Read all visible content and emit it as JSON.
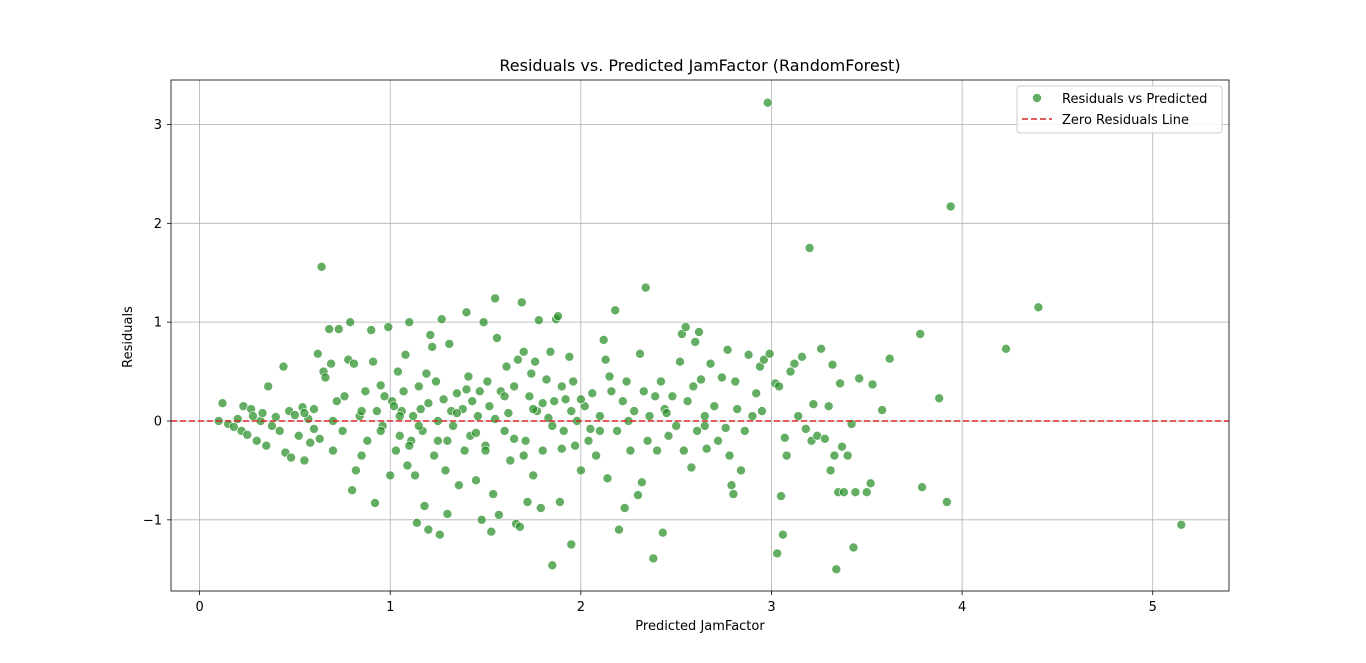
{
  "chart_data": {
    "type": "scatter",
    "title": "Residuals vs. Predicted JamFactor (RandomForest)",
    "xlabel": "Predicted JamFactor",
    "ylabel": "Residuals",
    "xlim": [
      -0.15,
      5.4
    ],
    "ylim": [
      -1.72,
      3.45
    ],
    "xticks": [
      0,
      1,
      2,
      3,
      4,
      5
    ],
    "yticks": [
      -1,
      0,
      1,
      2,
      3
    ],
    "grid": true,
    "legend_position": "top-right",
    "colors": {
      "points": "#228b22",
      "zero_line": "#d62728",
      "grid": "#b0b0b0"
    },
    "series": [
      {
        "name": "Residuals vs Predicted",
        "points": [
          [
            0.1,
            0.0
          ],
          [
            0.12,
            0.18
          ],
          [
            0.15,
            -0.03
          ],
          [
            0.18,
            -0.06
          ],
          [
            0.2,
            0.02
          ],
          [
            0.22,
            -0.1
          ],
          [
            0.23,
            0.15
          ],
          [
            0.25,
            -0.14
          ],
          [
            0.27,
            0.12
          ],
          [
            0.28,
            0.05
          ],
          [
            0.3,
            -0.2
          ],
          [
            0.32,
            0.0
          ],
          [
            0.33,
            0.08
          ],
          [
            0.35,
            -0.25
          ],
          [
            0.36,
            0.35
          ],
          [
            0.38,
            -0.05
          ],
          [
            0.4,
            0.04
          ],
          [
            0.42,
            -0.1
          ],
          [
            0.44,
            0.55
          ],
          [
            0.45,
            -0.32
          ],
          [
            0.47,
            0.1
          ],
          [
            0.48,
            -0.37
          ],
          [
            0.5,
            0.06
          ],
          [
            0.52,
            -0.15
          ],
          [
            0.54,
            0.14
          ],
          [
            0.55,
            -0.4
          ],
          [
            0.57,
            0.02
          ],
          [
            0.58,
            -0.22
          ],
          [
            0.6,
            0.12
          ],
          [
            0.62,
            0.68
          ],
          [
            0.63,
            -0.18
          ],
          [
            0.64,
            1.56
          ],
          [
            0.65,
            0.5
          ],
          [
            0.66,
            0.44
          ],
          [
            0.68,
            0.93
          ],
          [
            0.69,
            0.58
          ],
          [
            0.7,
            -0.3
          ],
          [
            0.72,
            0.2
          ],
          [
            0.73,
            0.93
          ],
          [
            0.75,
            -0.1
          ],
          [
            0.76,
            0.25
          ],
          [
            0.78,
            0.62
          ],
          [
            0.79,
            1.0
          ],
          [
            0.8,
            -0.7
          ],
          [
            0.81,
            0.58
          ],
          [
            0.82,
            -0.5
          ],
          [
            0.84,
            0.05
          ],
          [
            0.85,
            -0.35
          ],
          [
            0.87,
            0.3
          ],
          [
            0.88,
            -0.2
          ],
          [
            0.9,
            0.92
          ],
          [
            0.91,
            0.6
          ],
          [
            0.92,
            -0.83
          ],
          [
            0.93,
            0.1
          ],
          [
            0.95,
            0.36
          ],
          [
            0.96,
            -0.05
          ],
          [
            0.97,
            0.25
          ],
          [
            0.99,
            0.95
          ],
          [
            1.0,
            -0.55
          ],
          [
            1.01,
            0.2
          ],
          [
            1.02,
            0.15
          ],
          [
            1.03,
            -0.3
          ],
          [
            1.04,
            0.5
          ],
          [
            1.05,
            -0.15
          ],
          [
            1.06,
            0.1
          ],
          [
            1.07,
            0.3
          ],
          [
            1.08,
            0.67
          ],
          [
            1.09,
            -0.45
          ],
          [
            1.1,
            1.0
          ],
          [
            1.11,
            -0.2
          ],
          [
            1.12,
            0.05
          ],
          [
            1.13,
            -0.55
          ],
          [
            1.14,
            -1.03
          ],
          [
            1.15,
            0.35
          ],
          [
            1.16,
            0.12
          ],
          [
            1.17,
            -0.1
          ],
          [
            1.18,
            -0.86
          ],
          [
            1.19,
            0.48
          ],
          [
            1.2,
            -1.1
          ],
          [
            1.21,
            0.87
          ],
          [
            1.22,
            0.75
          ],
          [
            1.23,
            -0.35
          ],
          [
            1.24,
            0.4
          ],
          [
            1.25,
            -0.2
          ],
          [
            1.26,
            -1.15
          ],
          [
            1.27,
            1.03
          ],
          [
            1.28,
            0.22
          ],
          [
            1.29,
            -0.5
          ],
          [
            1.3,
            -0.94
          ],
          [
            1.31,
            0.78
          ],
          [
            1.32,
            0.1
          ],
          [
            1.33,
            -0.05
          ],
          [
            1.35,
            0.28
          ],
          [
            1.36,
            -0.65
          ],
          [
            1.38,
            0.12
          ],
          [
            1.39,
            -0.3
          ],
          [
            1.4,
            1.1
          ],
          [
            1.41,
            0.45
          ],
          [
            1.42,
            -0.15
          ],
          [
            1.43,
            0.2
          ],
          [
            1.45,
            -0.6
          ],
          [
            1.46,
            0.05
          ],
          [
            1.47,
            0.3
          ],
          [
            1.48,
            -1.0
          ],
          [
            1.49,
            1.0
          ],
          [
            1.5,
            -0.25
          ],
          [
            1.51,
            0.4
          ],
          [
            1.52,
            0.15
          ],
          [
            1.53,
            -1.12
          ],
          [
            1.54,
            -0.74
          ],
          [
            1.55,
            1.24
          ],
          [
            1.56,
            0.84
          ],
          [
            1.57,
            -0.95
          ],
          [
            1.58,
            0.3
          ],
          [
            1.6,
            -0.1
          ],
          [
            1.61,
            0.55
          ],
          [
            1.62,
            0.08
          ],
          [
            1.63,
            -0.4
          ],
          [
            1.65,
            0.35
          ],
          [
            1.66,
            -1.04
          ],
          [
            1.67,
            0.62
          ],
          [
            1.68,
            -1.07
          ],
          [
            1.69,
            1.2
          ],
          [
            1.7,
            0.7
          ],
          [
            1.71,
            -0.2
          ],
          [
            1.72,
            -0.82
          ],
          [
            1.73,
            0.25
          ],
          [
            1.74,
            0.48
          ],
          [
            1.75,
            -0.55
          ],
          [
            1.76,
            0.6
          ],
          [
            1.77,
            0.1
          ],
          [
            1.78,
            1.02
          ],
          [
            1.79,
            -0.88
          ],
          [
            1.8,
            -0.3
          ],
          [
            1.82,
            0.42
          ],
          [
            1.83,
            0.03
          ],
          [
            1.84,
            0.7
          ],
          [
            1.85,
            -1.46
          ],
          [
            1.86,
            0.2
          ],
          [
            1.87,
            1.03
          ],
          [
            1.88,
            1.06
          ],
          [
            1.89,
            -0.82
          ],
          [
            1.9,
            0.35
          ],
          [
            1.91,
            -0.1
          ],
          [
            1.92,
            0.22
          ],
          [
            1.94,
            0.65
          ],
          [
            1.95,
            -1.25
          ],
          [
            1.96,
            0.4
          ],
          [
            1.97,
            -0.25
          ],
          [
            1.98,
            0.0
          ],
          [
            2.0,
            -0.5
          ],
          [
            2.02,
            0.15
          ],
          [
            2.04,
            -0.2
          ],
          [
            2.06,
            0.28
          ],
          [
            2.08,
            -0.35
          ],
          [
            2.1,
            0.05
          ],
          [
            2.12,
            0.82
          ],
          [
            2.13,
            0.62
          ],
          [
            2.14,
            -0.58
          ],
          [
            2.15,
            0.45
          ],
          [
            2.16,
            0.3
          ],
          [
            2.18,
            1.12
          ],
          [
            2.19,
            -0.1
          ],
          [
            2.2,
            -1.1
          ],
          [
            2.22,
            0.2
          ],
          [
            2.23,
            -0.88
          ],
          [
            2.24,
            0.4
          ],
          [
            2.26,
            -0.3
          ],
          [
            2.28,
            0.1
          ],
          [
            2.3,
            -0.75
          ],
          [
            2.31,
            0.68
          ],
          [
            2.32,
            -0.62
          ],
          [
            2.33,
            0.3
          ],
          [
            2.34,
            1.35
          ],
          [
            2.35,
            -0.2
          ],
          [
            2.36,
            0.05
          ],
          [
            2.38,
            -1.39
          ],
          [
            2.39,
            0.25
          ],
          [
            2.4,
            -0.3
          ],
          [
            2.42,
            0.4
          ],
          [
            2.43,
            -1.13
          ],
          [
            2.44,
            0.12
          ],
          [
            2.46,
            -0.15
          ],
          [
            2.48,
            0.25
          ],
          [
            2.5,
            -0.05
          ],
          [
            2.52,
            0.6
          ],
          [
            2.53,
            0.88
          ],
          [
            2.54,
            -0.3
          ],
          [
            2.55,
            0.95
          ],
          [
            2.56,
            0.2
          ],
          [
            2.58,
            -0.47
          ],
          [
            2.59,
            0.35
          ],
          [
            2.6,
            0.8
          ],
          [
            2.61,
            -0.1
          ],
          [
            2.62,
            0.9
          ],
          [
            2.63,
            0.42
          ],
          [
            2.65,
            0.05
          ],
          [
            2.66,
            -0.28
          ],
          [
            2.68,
            0.58
          ],
          [
            2.7,
            0.15
          ],
          [
            2.72,
            -0.2
          ],
          [
            2.74,
            0.44
          ],
          [
            2.76,
            -0.07
          ],
          [
            2.77,
            0.72
          ],
          [
            2.78,
            -0.35
          ],
          [
            2.79,
            -0.65
          ],
          [
            2.8,
            -0.74
          ],
          [
            2.81,
            0.4
          ],
          [
            2.82,
            0.12
          ],
          [
            2.84,
            -0.5
          ],
          [
            2.86,
            -0.1
          ],
          [
            2.88,
            0.67
          ],
          [
            2.9,
            0.05
          ],
          [
            2.92,
            0.28
          ],
          [
            2.94,
            0.55
          ],
          [
            2.95,
            0.1
          ],
          [
            2.96,
            0.62
          ],
          [
            2.98,
            3.22
          ],
          [
            2.99,
            0.68
          ],
          [
            3.02,
            0.38
          ],
          [
            3.03,
            -1.34
          ],
          [
            3.04,
            0.35
          ],
          [
            3.05,
            -0.76
          ],
          [
            3.06,
            -1.15
          ],
          [
            3.07,
            -0.17
          ],
          [
            3.08,
            -0.35
          ],
          [
            3.1,
            0.5
          ],
          [
            3.12,
            0.58
          ],
          [
            3.14,
            0.05
          ],
          [
            3.16,
            0.65
          ],
          [
            3.18,
            -0.08
          ],
          [
            3.2,
            1.75
          ],
          [
            3.21,
            -0.2
          ],
          [
            3.22,
            0.17
          ],
          [
            3.24,
            -0.15
          ],
          [
            3.26,
            0.73
          ],
          [
            3.28,
            -0.18
          ],
          [
            3.3,
            0.15
          ],
          [
            3.31,
            -0.5
          ],
          [
            3.32,
            0.57
          ],
          [
            3.33,
            -0.35
          ],
          [
            3.34,
            -1.5
          ],
          [
            3.35,
            -0.72
          ],
          [
            3.36,
            0.38
          ],
          [
            3.37,
            -0.26
          ],
          [
            3.38,
            -0.72
          ],
          [
            3.4,
            -0.35
          ],
          [
            3.42,
            -0.03
          ],
          [
            3.43,
            -1.28
          ],
          [
            3.44,
            -0.72
          ],
          [
            3.46,
            0.43
          ],
          [
            3.5,
            -0.72
          ],
          [
            3.52,
            -0.63
          ],
          [
            3.53,
            0.37
          ],
          [
            3.58,
            0.11
          ],
          [
            3.62,
            0.63
          ],
          [
            3.78,
            0.88
          ],
          [
            3.79,
            -0.67
          ],
          [
            3.88,
            0.23
          ],
          [
            3.92,
            -0.82
          ],
          [
            3.94,
            2.17
          ],
          [
            4.23,
            0.73
          ],
          [
            4.4,
            1.15
          ],
          [
            5.15,
            -1.05
          ],
          [
            0.55,
            0.08
          ],
          [
            0.6,
            -0.08
          ],
          [
            0.7,
            0.0
          ],
          [
            0.85,
            0.1
          ],
          [
            0.95,
            -0.1
          ],
          [
            1.05,
            0.05
          ],
          [
            1.15,
            -0.05
          ],
          [
            1.25,
            0.0
          ],
          [
            1.35,
            0.08
          ],
          [
            1.45,
            -0.12
          ],
          [
            1.55,
            0.02
          ],
          [
            1.65,
            -0.18
          ],
          [
            1.75,
            0.12
          ],
          [
            1.85,
            -0.05
          ],
          [
            1.95,
            0.1
          ],
          [
            2.05,
            -0.08
          ],
          [
            2.25,
            0.0
          ],
          [
            2.45,
            0.08
          ],
          [
            2.65,
            -0.05
          ],
          [
            1.1,
            -0.25
          ],
          [
            1.2,
            0.18
          ],
          [
            1.3,
            -0.2
          ],
          [
            1.4,
            0.32
          ],
          [
            1.5,
            -0.3
          ],
          [
            1.6,
            0.25
          ],
          [
            1.7,
            -0.35
          ],
          [
            1.8,
            0.18
          ],
          [
            1.9,
            -0.28
          ],
          [
            2.0,
            0.22
          ],
          [
            2.1,
            -0.1
          ]
        ]
      },
      {
        "name": "Zero Residuals Line",
        "y": 0
      }
    ]
  }
}
